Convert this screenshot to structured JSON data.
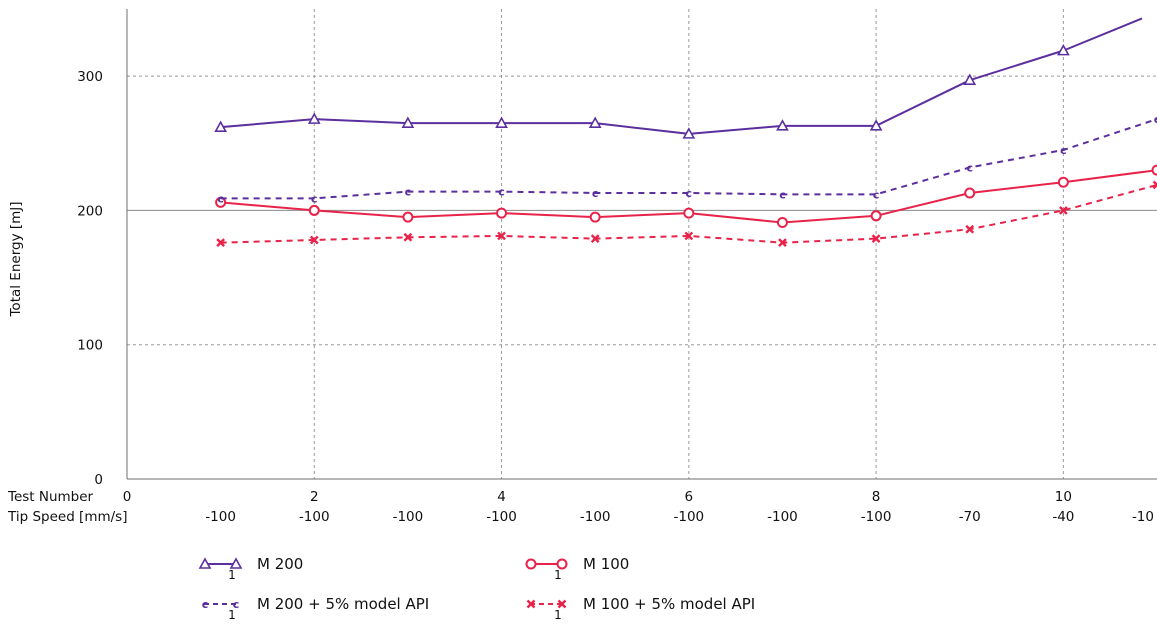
{
  "chart_data": {
    "type": "line",
    "ylabel": "Total Energy [mJ]",
    "ylim": [
      0,
      350
    ],
    "xlim": [
      0,
      11
    ],
    "yticks": [
      0,
      100,
      200,
      300
    ],
    "grid": true,
    "legend_position": "bottom",
    "x_axes": [
      {
        "label": "Test Number",
        "ticks": [
          {
            "x": 0,
            "label": "0"
          },
          {
            "x": 2,
            "label": "2"
          },
          {
            "x": 4,
            "label": "4"
          },
          {
            "x": 6,
            "label": "6"
          },
          {
            "x": 8,
            "label": "8"
          },
          {
            "x": 10,
            "label": "10"
          }
        ]
      },
      {
        "label": "Tip Speed [mm/s]",
        "ticks": [
          {
            "x": 1,
            "label": "-100"
          },
          {
            "x": 2,
            "label": "-100"
          },
          {
            "x": 3,
            "label": "-100"
          },
          {
            "x": 4,
            "label": "-100"
          },
          {
            "x": 5,
            "label": "-100"
          },
          {
            "x": 6,
            "label": "-100"
          },
          {
            "x": 7,
            "label": "-100"
          },
          {
            "x": 8,
            "label": "-100"
          },
          {
            "x": 9,
            "label": "-70"
          },
          {
            "x": 10,
            "label": "-40"
          },
          {
            "x": 11,
            "label": "-10"
          }
        ]
      }
    ],
    "x": [
      1,
      2,
      3,
      4,
      5,
      6,
      7,
      8,
      9,
      10,
      11
    ],
    "series": [
      {
        "name": "M 200",
        "values": [
          262,
          268,
          265,
          265,
          265,
          257,
          263,
          263,
          297,
          319,
          343
        ],
        "color": "#5b2f9e",
        "dash": "solid",
        "marker": "triangle",
        "legend_sub": "1"
      },
      {
        "name": "M 100",
        "values": [
          206,
          200,
          195,
          198,
          195,
          198,
          191,
          196,
          213,
          221,
          230
        ],
        "color": "#e8234a",
        "dash": "solid",
        "marker": "circle",
        "legend_sub": "1"
      },
      {
        "name": "M 200 + 5% model API",
        "values": [
          209,
          209,
          214,
          214,
          213,
          213,
          212,
          212,
          232,
          245,
          268
        ],
        "color": "#5b2f9e",
        "dash": "dashed",
        "marker": "c",
        "marker_text": "c",
        "legend_sub": "1"
      },
      {
        "name": "M 100 + 5% model API",
        "values": [
          176,
          178,
          180,
          181,
          179,
          181,
          176,
          179,
          186,
          200,
          219
        ],
        "color": "#e8234a",
        "dash": "dashed",
        "marker": "x",
        "legend_sub": "1"
      }
    ]
  }
}
